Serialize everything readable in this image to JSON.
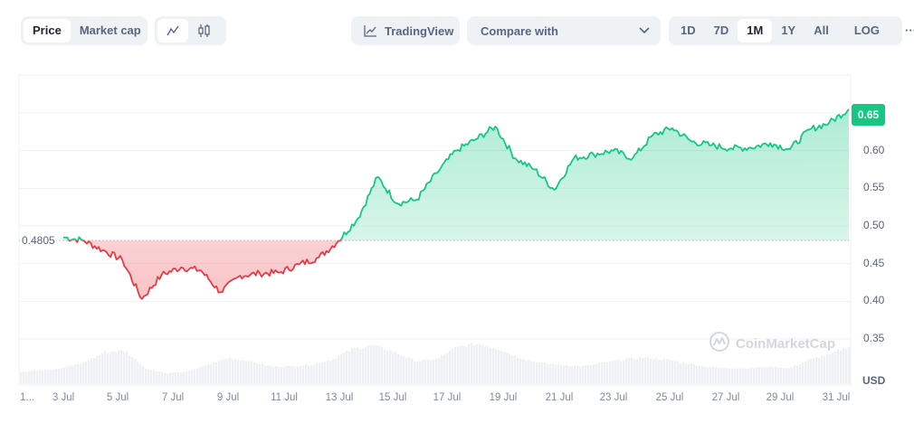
{
  "toolbar": {
    "view_toggle": {
      "options": [
        "Price",
        "Market cap"
      ],
      "active": "Price"
    },
    "chart_type": {
      "options": [
        {
          "icon": "line-chart-icon"
        },
        {
          "icon": "candlestick-icon"
        }
      ],
      "active": 0
    },
    "tradingview": {
      "label": "TradingView",
      "icon": "tradingview-chart-icon"
    },
    "compare": {
      "label": "Compare with",
      "icon": "chevron-down-icon"
    },
    "ranges": {
      "options": [
        "1D",
        "7D",
        "1M",
        "1Y",
        "All"
      ],
      "active": "1M"
    },
    "log_label": "LOG",
    "more_label": "···"
  },
  "colors": {
    "up": "#16c784",
    "down": "#ea3943",
    "grid": "#eff2f5",
    "text": "#58667e",
    "volume": "#eef0f4"
  },
  "chart_data": {
    "type": "area",
    "title": "",
    "xlabel": "",
    "ylabel": "USD",
    "currency_label": "USD",
    "baseline": 0.4805,
    "baseline_label": "0.4805",
    "current_price_label": "0.65",
    "ylim": [
      0.3,
      0.68
    ],
    "y_ticks": [
      "0.65",
      "0.60",
      "0.55",
      "0.50",
      "0.45",
      "0.40",
      "0.35"
    ],
    "x_ticks": [
      "1...",
      "3 Jul",
      "5 Jul",
      "7 Jul",
      "9 Jul",
      "11 Jul",
      "13 Jul",
      "15 Jul",
      "17 Jul",
      "19 Jul",
      "21 Jul",
      "23 Jul",
      "25 Jul",
      "27 Jul",
      "29 Jul",
      "31 Jul"
    ],
    "grid": true,
    "watermark": "CoinMarketCap",
    "series": [
      {
        "name": "Price",
        "x": [
          "2 Jul",
          "3 Jul",
          "4 Jul",
          "5 Jul",
          "5 Jul",
          "6 Jul",
          "7 Jul",
          "8 Jul",
          "8 Jul",
          "9 Jul",
          "10 Jul",
          "11 Jul",
          "12 Jul",
          "13 Jul",
          "13 Jul",
          "14 Jul",
          "14 Jul",
          "15 Jul",
          "16 Jul",
          "16 Jul",
          "17 Jul",
          "17 Jul",
          "18 Jul",
          "18 Jul",
          "19 Jul",
          "19 Jul",
          "20 Jul",
          "21 Jul",
          "22 Jul",
          "23 Jul",
          "24 Jul",
          "24 Jul",
          "25 Jul",
          "26 Jul",
          "27 Jul",
          "28 Jul",
          "29 Jul",
          "30 Jul",
          "30 Jul",
          "31 Jul",
          "31 Jul"
        ],
        "values": [
          0.485,
          0.481,
          0.468,
          0.455,
          0.403,
          0.435,
          0.445,
          0.441,
          0.412,
          0.434,
          0.437,
          0.438,
          0.449,
          0.458,
          0.48,
          0.51,
          0.565,
          0.53,
          0.535,
          0.57,
          0.6,
          0.615,
          0.632,
          0.59,
          0.575,
          0.548,
          0.59,
          0.595,
          0.6,
          0.59,
          0.62,
          0.63,
          0.612,
          0.607,
          0.603,
          0.604,
          0.61,
          0.602,
          0.628,
          0.637,
          0.655
        ]
      },
      {
        "name": "Volume (relative)",
        "values": [
          0.2,
          0.25,
          0.3,
          0.45,
          0.75,
          0.8,
          0.3,
          0.15,
          0.2,
          0.4,
          0.6,
          0.5,
          0.35,
          0.35,
          0.4,
          0.55,
          0.85,
          0.95,
          0.75,
          0.5,
          0.55,
          0.9,
          1.0,
          0.85,
          0.6,
          0.45,
          0.4,
          0.35,
          0.45,
          0.55,
          0.6,
          0.55,
          0.45,
          0.35,
          0.3,
          0.3,
          0.35,
          0.3,
          0.55,
          0.7,
          0.95
        ]
      }
    ]
  }
}
